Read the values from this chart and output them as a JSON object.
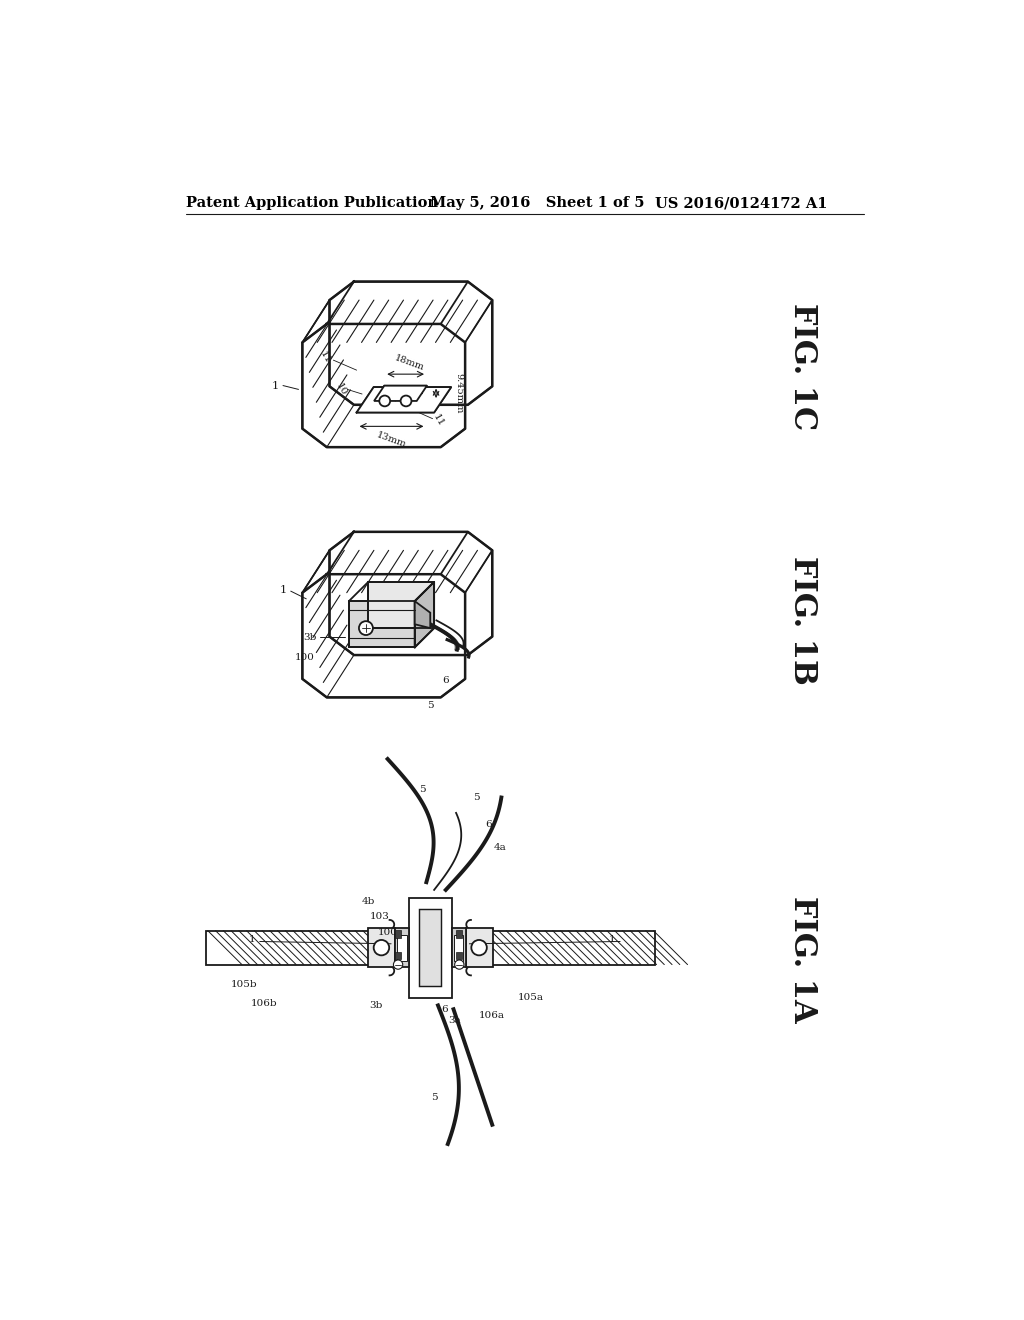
{
  "bg_color": "#ffffff",
  "header_left": "Patent Application Publication",
  "header_center": "May 5, 2016   Sheet 1 of 5",
  "header_right": "US 2016/0124172 A1",
  "fig1c_label": "FIG. 1C",
  "fig1b_label": "FIG. 1B",
  "fig1a_label": "FIG. 1A",
  "line_color": "#1a1a1a",
  "label_fontsize": 22,
  "header_fontsize": 10.5
}
